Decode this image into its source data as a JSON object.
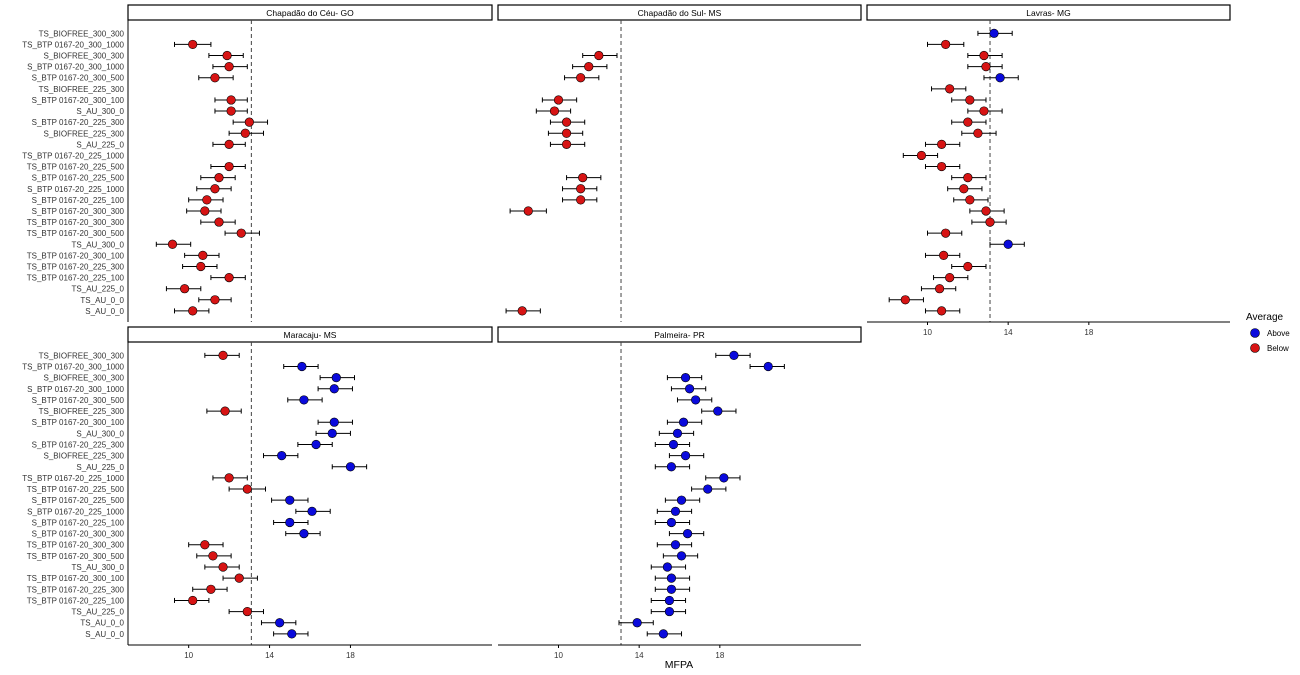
{
  "chart_data": {
    "type": "scatter",
    "subtype": "dot-plot with horizontal error bars, faceted",
    "xlabel": "MFPA",
    "ylabel": "",
    "xlim": [
      7,
      25
    ],
    "xticks": [
      10,
      14,
      18
    ],
    "grid": false,
    "legend": {
      "title": "Average",
      "placement": "right",
      "entries": [
        {
          "key": "Above",
          "label": "Above",
          "color": "#0a0adc"
        },
        {
          "key": "Below",
          "label": "Below",
          "color": "#d71414"
        }
      ]
    },
    "categories": [
      "TS_BIOFREE_300_300",
      "TS_BTP 0167-20_300_1000",
      "S_BIOFREE_300_300",
      "S_BTP 0167-20_300_1000",
      "S_BTP 0167-20_300_500",
      "TS_BIOFREE_225_300",
      "S_BTP 0167-20_300_100",
      "S_AU_300_0",
      "S_BTP 0167-20_225_300",
      "S_BIOFREE_225_300",
      "S_AU_225_0",
      "TS_BTP 0167-20_225_1000",
      "TS_BTP 0167-20_225_500",
      "S_BTP 0167-20_225_500",
      "S_BTP 0167-20_225_1000",
      "S_BTP 0167-20_225_100",
      "S_BTP 0167-20_300_300",
      "TS_BTP 0167-20_300_300",
      "TS_BTP 0167-20_300_500",
      "TS_AU_300_0",
      "TS_BTP 0167-20_300_100",
      "TS_BTP 0167-20_225_300",
      "TS_BTP 0167-20_225_100",
      "TS_AU_225_0",
      "TS_AU_0_0",
      "S_AU_0_0"
    ],
    "panels": [
      {
        "title": "Chapadão do Céu- GO",
        "reference_line": 13.1,
        "points": [
          null,
          {
            "mean": 10.2,
            "lo": 9.3,
            "hi": 11.1,
            "group": "Below"
          },
          {
            "mean": 11.9,
            "lo": 11.0,
            "hi": 12.7,
            "group": "Below"
          },
          {
            "mean": 12.0,
            "lo": 11.2,
            "hi": 12.9,
            "group": "Below"
          },
          {
            "mean": 11.3,
            "lo": 10.5,
            "hi": 12.2,
            "group": "Below"
          },
          null,
          {
            "mean": 12.1,
            "lo": 11.3,
            "hi": 12.9,
            "group": "Below"
          },
          {
            "mean": 12.1,
            "lo": 11.3,
            "hi": 12.9,
            "group": "Below"
          },
          {
            "mean": 13.0,
            "lo": 12.2,
            "hi": 13.9,
            "group": "Below"
          },
          {
            "mean": 12.8,
            "lo": 12.0,
            "hi": 13.7,
            "group": "Below"
          },
          {
            "mean": 12.0,
            "lo": 11.2,
            "hi": 12.8,
            "group": "Below"
          },
          null,
          {
            "mean": 12.0,
            "lo": 11.1,
            "hi": 12.8,
            "group": "Below"
          },
          {
            "mean": 11.5,
            "lo": 10.6,
            "hi": 12.3,
            "group": "Below"
          },
          {
            "mean": 11.3,
            "lo": 10.4,
            "hi": 12.1,
            "group": "Below"
          },
          {
            "mean": 10.9,
            "lo": 10.0,
            "hi": 11.7,
            "group": "Below"
          },
          {
            "mean": 10.8,
            "lo": 9.9,
            "hi": 11.6,
            "group": "Below"
          },
          {
            "mean": 11.5,
            "lo": 10.6,
            "hi": 12.3,
            "group": "Below"
          },
          {
            "mean": 12.6,
            "lo": 11.8,
            "hi": 13.5,
            "group": "Below"
          },
          {
            "mean": 9.2,
            "lo": 8.4,
            "hi": 10.1,
            "group": "Below"
          },
          {
            "mean": 10.7,
            "lo": 9.8,
            "hi": 11.5,
            "group": "Below"
          },
          {
            "mean": 10.6,
            "lo": 9.7,
            "hi": 11.4,
            "group": "Below"
          },
          {
            "mean": 12.0,
            "lo": 11.1,
            "hi": 12.8,
            "group": "Below"
          },
          {
            "mean": 9.8,
            "lo": 8.9,
            "hi": 10.6,
            "group": "Below"
          },
          {
            "mean": 11.3,
            "lo": 10.5,
            "hi": 12.1,
            "group": "Below"
          },
          {
            "mean": 10.2,
            "lo": 9.3,
            "hi": 11.0,
            "group": "Below"
          }
        ]
      },
      {
        "title": "Chapadão do Sul- MS",
        "reference_line": 13.1,
        "points": [
          null,
          null,
          {
            "mean": 12.0,
            "lo": 11.2,
            "hi": 12.9,
            "group": "Below"
          },
          {
            "mean": 11.5,
            "lo": 10.7,
            "hi": 12.4,
            "group": "Below"
          },
          {
            "mean": 11.1,
            "lo": 10.3,
            "hi": 12.0,
            "group": "Below"
          },
          null,
          {
            "mean": 10.0,
            "lo": 9.2,
            "hi": 10.9,
            "group": "Below"
          },
          {
            "mean": 9.8,
            "lo": 8.9,
            "hi": 10.6,
            "group": "Below"
          },
          {
            "mean": 10.4,
            "lo": 9.6,
            "hi": 11.3,
            "group": "Below"
          },
          {
            "mean": 10.4,
            "lo": 9.5,
            "hi": 11.2,
            "group": "Below"
          },
          {
            "mean": 10.4,
            "lo": 9.6,
            "hi": 11.3,
            "group": "Below"
          },
          null,
          null,
          {
            "mean": 11.2,
            "lo": 10.4,
            "hi": 12.1,
            "group": "Below"
          },
          {
            "mean": 11.1,
            "lo": 10.2,
            "hi": 11.9,
            "group": "Below"
          },
          {
            "mean": 11.1,
            "lo": 10.2,
            "hi": 11.9,
            "group": "Below"
          },
          {
            "mean": 8.5,
            "lo": 7.6,
            "hi": 9.4,
            "group": "Below"
          },
          null,
          null,
          null,
          null,
          null,
          null,
          null,
          null,
          {
            "mean": 8.2,
            "lo": 7.4,
            "hi": 9.1,
            "group": "Below"
          }
        ]
      },
      {
        "title": "Lavras- MG",
        "reference_line": 13.1,
        "points": [
          {
            "mean": 13.3,
            "lo": 12.5,
            "hi": 14.2,
            "group": "Above"
          },
          {
            "mean": 10.9,
            "lo": 10.0,
            "hi": 11.8,
            "group": "Below"
          },
          {
            "mean": 12.8,
            "lo": 12.0,
            "hi": 13.7,
            "group": "Below"
          },
          {
            "mean": 12.9,
            "lo": 12.0,
            "hi": 13.7,
            "group": "Below"
          },
          {
            "mean": 13.6,
            "lo": 12.8,
            "hi": 14.5,
            "group": "Above"
          },
          {
            "mean": 11.1,
            "lo": 10.2,
            "hi": 11.9,
            "group": "Below"
          },
          {
            "mean": 12.1,
            "lo": 11.2,
            "hi": 12.9,
            "group": "Below"
          },
          {
            "mean": 12.8,
            "lo": 12.0,
            "hi": 13.7,
            "group": "Below"
          },
          {
            "mean": 12.0,
            "lo": 11.2,
            "hi": 12.9,
            "group": "Below"
          },
          {
            "mean": 12.5,
            "lo": 11.7,
            "hi": 13.4,
            "group": "Below"
          },
          {
            "mean": 10.7,
            "lo": 9.9,
            "hi": 11.6,
            "group": "Below"
          },
          {
            "mean": 9.7,
            "lo": 8.8,
            "hi": 10.5,
            "group": "Below"
          },
          {
            "mean": 10.7,
            "lo": 9.9,
            "hi": 11.6,
            "group": "Below"
          },
          {
            "mean": 12.0,
            "lo": 11.2,
            "hi": 12.9,
            "group": "Below"
          },
          {
            "mean": 11.8,
            "lo": 11.0,
            "hi": 12.7,
            "group": "Below"
          },
          {
            "mean": 12.1,
            "lo": 11.3,
            "hi": 13.0,
            "group": "Below"
          },
          {
            "mean": 12.9,
            "lo": 12.1,
            "hi": 13.8,
            "group": "Below"
          },
          {
            "mean": 13.1,
            "lo": 12.2,
            "hi": 13.9,
            "group": "Below"
          },
          {
            "mean": 10.9,
            "lo": 10.0,
            "hi": 11.7,
            "group": "Below"
          },
          {
            "mean": 14.0,
            "lo": 13.1,
            "hi": 14.8,
            "group": "Above"
          },
          {
            "mean": 10.8,
            "lo": 9.9,
            "hi": 11.6,
            "group": "Below"
          },
          {
            "mean": 12.0,
            "lo": 11.2,
            "hi": 12.9,
            "group": "Below"
          },
          {
            "mean": 11.1,
            "lo": 10.3,
            "hi": 12.0,
            "group": "Below"
          },
          {
            "mean": 10.6,
            "lo": 9.7,
            "hi": 11.4,
            "group": "Below"
          },
          {
            "mean": 8.9,
            "lo": 8.1,
            "hi": 9.8,
            "group": "Below"
          },
          {
            "mean": 10.7,
            "lo": 9.9,
            "hi": 11.6,
            "group": "Below"
          }
        ]
      },
      {
        "title": "Maracaju- MS",
        "reference_line": 13.1,
        "points": [
          {
            "mean": 11.7,
            "lo": 10.8,
            "hi": 12.5,
            "group": "Below"
          },
          {
            "mean": 15.6,
            "lo": 14.7,
            "hi": 16.4,
            "group": "Above"
          },
          {
            "mean": 17.3,
            "lo": 16.5,
            "hi": 18.2,
            "group": "Above"
          },
          {
            "mean": 17.2,
            "lo": 16.4,
            "hi": 18.1,
            "group": "Above"
          },
          {
            "mean": 15.7,
            "lo": 14.9,
            "hi": 16.6,
            "group": "Above"
          },
          {
            "mean": 11.8,
            "lo": 10.9,
            "hi": 12.6,
            "group": "Below"
          },
          {
            "mean": 17.2,
            "lo": 16.4,
            "hi": 18.1,
            "group": "Above"
          },
          {
            "mean": 17.1,
            "lo": 16.3,
            "hi": 18.0,
            "group": "Above"
          },
          {
            "mean": 16.3,
            "lo": 15.4,
            "hi": 17.1,
            "group": "Above"
          },
          {
            "mean": 14.6,
            "lo": 13.7,
            "hi": 15.4,
            "group": "Above"
          },
          {
            "mean": 18.0,
            "lo": 17.1,
            "hi": 18.8,
            "group": "Above"
          },
          {
            "mean": 12.0,
            "lo": 11.2,
            "hi": 12.9,
            "group": "Below"
          },
          {
            "mean": 12.9,
            "lo": 12.0,
            "hi": 13.8,
            "group": "Below"
          },
          {
            "mean": 15.0,
            "lo": 14.1,
            "hi": 15.9,
            "group": "Above"
          },
          {
            "mean": 16.1,
            "lo": 15.3,
            "hi": 17.0,
            "group": "Above"
          },
          {
            "mean": 15.0,
            "lo": 14.2,
            "hi": 15.9,
            "group": "Above"
          },
          {
            "mean": 15.7,
            "lo": 14.8,
            "hi": 16.5,
            "group": "Above"
          },
          {
            "mean": 10.8,
            "lo": 10.0,
            "hi": 11.7,
            "group": "Below"
          },
          {
            "mean": 11.2,
            "lo": 10.4,
            "hi": 12.1,
            "group": "Below"
          },
          {
            "mean": 11.7,
            "lo": 10.8,
            "hi": 12.5,
            "group": "Below"
          },
          {
            "mean": 12.5,
            "lo": 11.7,
            "hi": 13.4,
            "group": "Below"
          },
          {
            "mean": 11.1,
            "lo": 10.2,
            "hi": 11.9,
            "group": "Below"
          },
          {
            "mean": 10.2,
            "lo": 9.3,
            "hi": 11.0,
            "group": "Below"
          },
          {
            "mean": 12.9,
            "lo": 12.0,
            "hi": 13.7,
            "group": "Below"
          },
          {
            "mean": 14.5,
            "lo": 13.6,
            "hi": 15.3,
            "group": "Above"
          },
          {
            "mean": 15.1,
            "lo": 14.2,
            "hi": 15.9,
            "group": "Above"
          }
        ]
      },
      {
        "title": "Palmeira- PR",
        "reference_line": 13.1,
        "points": [
          {
            "mean": 18.7,
            "lo": 17.8,
            "hi": 19.5,
            "group": "Above"
          },
          {
            "mean": 20.4,
            "lo": 19.5,
            "hi": 21.2,
            "group": "Above"
          },
          {
            "mean": 16.3,
            "lo": 15.4,
            "hi": 17.1,
            "group": "Above"
          },
          {
            "mean": 16.5,
            "lo": 15.6,
            "hi": 17.3,
            "group": "Above"
          },
          {
            "mean": 16.8,
            "lo": 15.9,
            "hi": 17.6,
            "group": "Above"
          },
          {
            "mean": 17.9,
            "lo": 17.1,
            "hi": 18.8,
            "group": "Above"
          },
          {
            "mean": 16.2,
            "lo": 15.4,
            "hi": 17.1,
            "group": "Above"
          },
          {
            "mean": 15.9,
            "lo": 15.0,
            "hi": 16.7,
            "group": "Above"
          },
          {
            "mean": 15.7,
            "lo": 14.8,
            "hi": 16.5,
            "group": "Above"
          },
          {
            "mean": 16.3,
            "lo": 15.5,
            "hi": 17.2,
            "group": "Above"
          },
          {
            "mean": 15.6,
            "lo": 14.8,
            "hi": 16.5,
            "group": "Above"
          },
          {
            "mean": 18.2,
            "lo": 17.3,
            "hi": 19.0,
            "group": "Above"
          },
          {
            "mean": 17.4,
            "lo": 16.6,
            "hi": 18.3,
            "group": "Above"
          },
          {
            "mean": 16.1,
            "lo": 15.3,
            "hi": 17.0,
            "group": "Above"
          },
          {
            "mean": 15.8,
            "lo": 14.9,
            "hi": 16.6,
            "group": "Above"
          },
          {
            "mean": 15.6,
            "lo": 14.8,
            "hi": 16.5,
            "group": "Above"
          },
          {
            "mean": 16.4,
            "lo": 15.5,
            "hi": 17.2,
            "group": "Above"
          },
          {
            "mean": 15.8,
            "lo": 14.9,
            "hi": 16.6,
            "group": "Above"
          },
          {
            "mean": 16.1,
            "lo": 15.2,
            "hi": 16.9,
            "group": "Above"
          },
          {
            "mean": 15.4,
            "lo": 14.6,
            "hi": 16.3,
            "group": "Above"
          },
          {
            "mean": 15.6,
            "lo": 14.8,
            "hi": 16.5,
            "group": "Above"
          },
          {
            "mean": 15.6,
            "lo": 14.8,
            "hi": 16.5,
            "group": "Above"
          },
          {
            "mean": 15.5,
            "lo": 14.6,
            "hi": 16.3,
            "group": "Above"
          },
          {
            "mean": 15.5,
            "lo": 14.6,
            "hi": 16.3,
            "group": "Above"
          },
          {
            "mean": 13.9,
            "lo": 13.0,
            "hi": 14.7,
            "group": "Above"
          },
          {
            "mean": 15.2,
            "lo": 14.4,
            "hi": 16.1,
            "group": "Above"
          }
        ]
      }
    ]
  }
}
